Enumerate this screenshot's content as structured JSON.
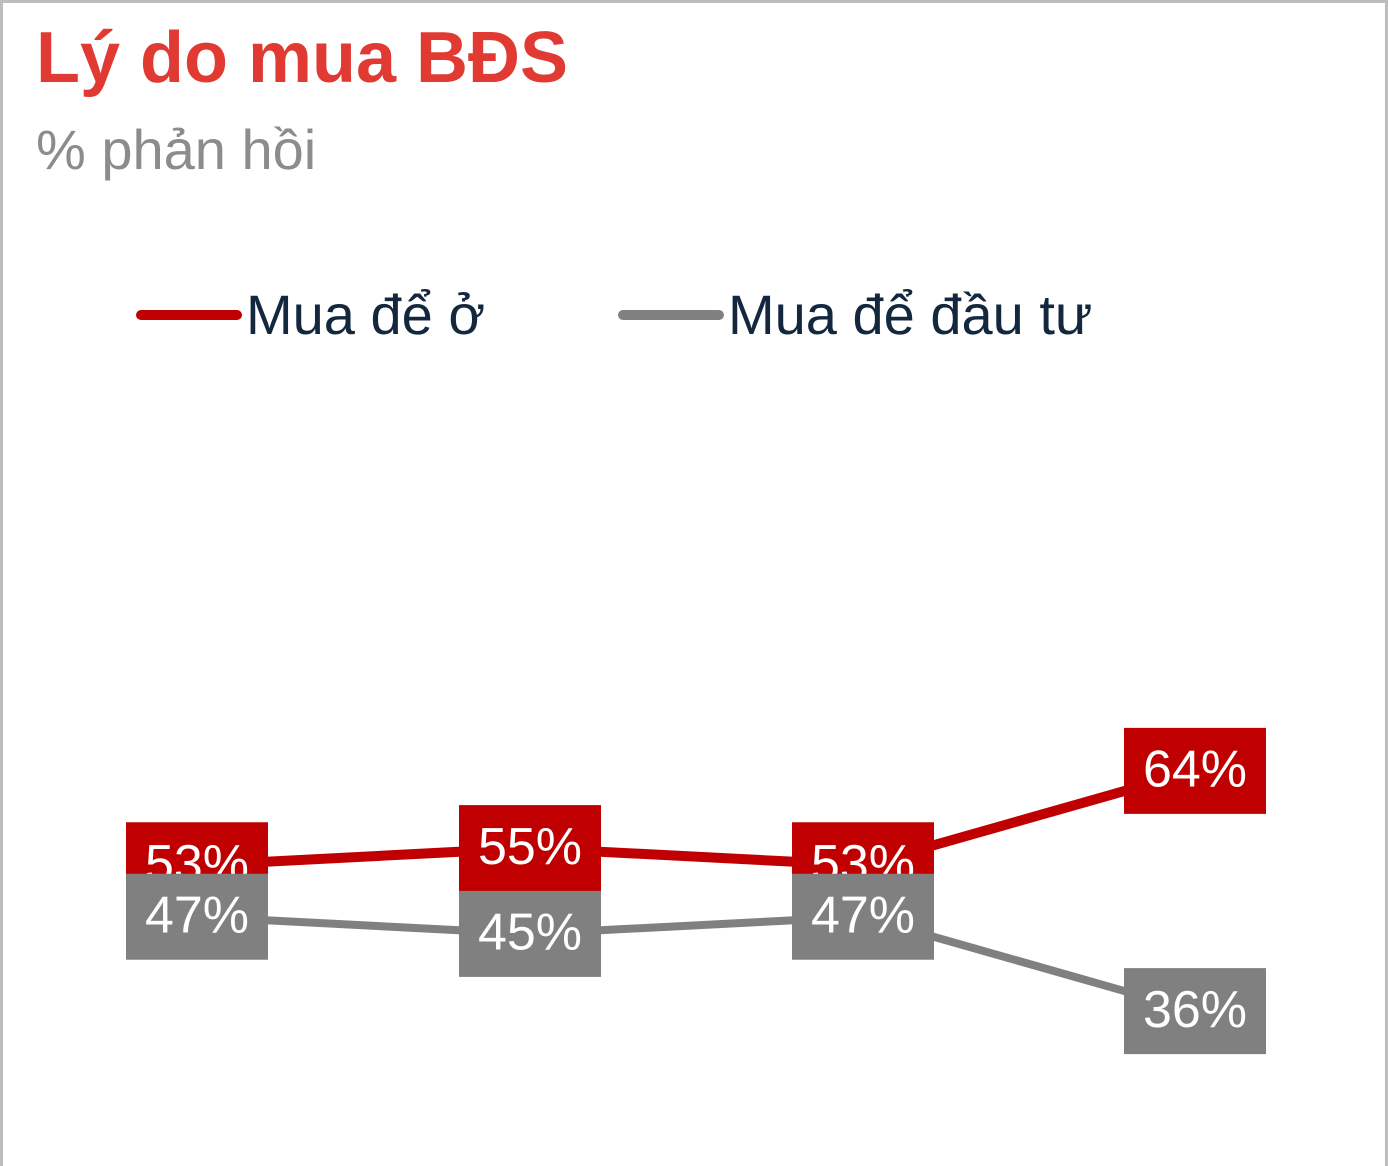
{
  "title": "Lý do mua BĐS",
  "subtitle": "% phản hồi",
  "colors": {
    "title": "#e03a32",
    "subtitle": "#8c8c8c",
    "legend_text": "#13283f",
    "frame": "#bdbdbd"
  },
  "legend": [
    {
      "label": "Mua để ở",
      "color": "#c00000"
    },
    {
      "label": "Mua để đầu tư",
      "color": "#808080"
    }
  ],
  "chart_data": {
    "type": "line",
    "title": "Lý do mua BĐS",
    "subtitle": "% phản hồi",
    "categories": [
      "",
      "",
      "",
      ""
    ],
    "series": [
      {
        "name": "Mua để ở",
        "color": "#c00000",
        "values": [
          53,
          55,
          53,
          64
        ],
        "labels": [
          "53%",
          "55%",
          "53%",
          "64%"
        ]
      },
      {
        "name": "Mua để đầu tư",
        "color": "#808080",
        "values": [
          47,
          45,
          47,
          36
        ],
        "labels": [
          "47%",
          "45%",
          "47%",
          "36%"
        ]
      }
    ],
    "legend_position": "top",
    "grid": false,
    "data_labels": true
  }
}
